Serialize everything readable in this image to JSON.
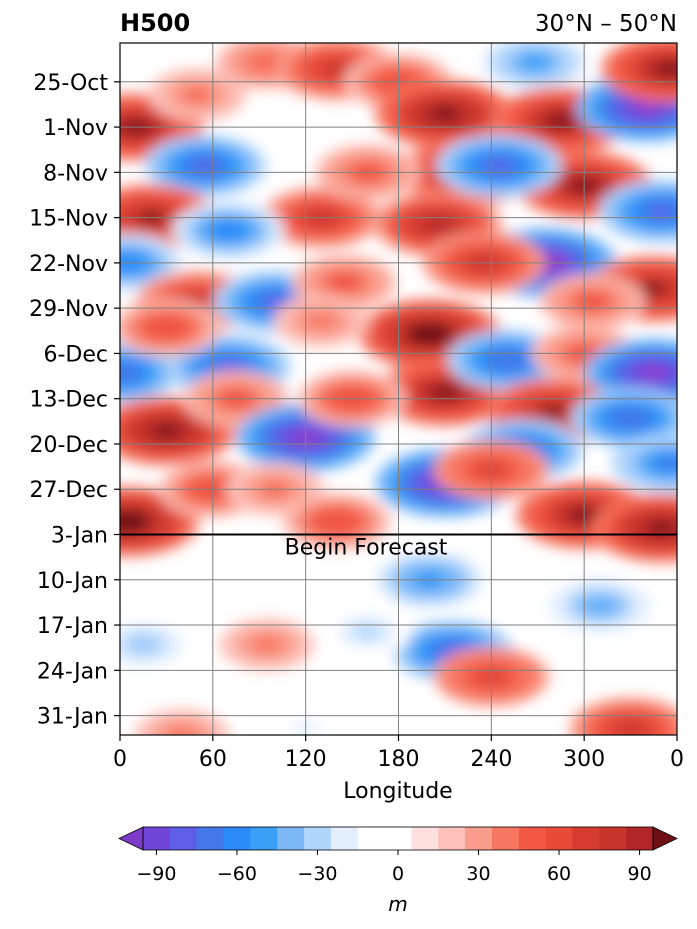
{
  "chart_data": {
    "type": "heatmap",
    "title_left": "H500",
    "title_right": "30°N – 50°N",
    "xlabel": "Longitude",
    "ylabel": "",
    "x_ticks": [
      "0",
      "60",
      "120",
      "180",
      "240",
      "300",
      "0"
    ],
    "x_tick_values": [
      0,
      60,
      120,
      180,
      240,
      300,
      360
    ],
    "xlim": [
      0,
      360
    ],
    "y_ticks": [
      "25-Oct",
      "1-Nov",
      "8-Nov",
      "15-Nov",
      "22-Nov",
      "29-Nov",
      "6-Dec",
      "13-Dec",
      "20-Dec",
      "27-Dec",
      "3-Jan",
      "10-Jan",
      "17-Jan",
      "24-Jan",
      "31-Jan"
    ],
    "y_range": [
      "19-Oct",
      "3-Feb"
    ],
    "y_axis_inverted": true,
    "forecast_start": "3-Jan",
    "annotation": "Begin Forecast",
    "grid": true,
    "colorbar": {
      "label": "m",
      "ticks": [
        "−90",
        "−60",
        "−30",
        "0",
        "30",
        "60",
        "90"
      ],
      "tick_values": [
        -90,
        -60,
        -30,
        0,
        30,
        60,
        90
      ],
      "levels": [
        -105,
        -95,
        -85,
        -75,
        -65,
        -55,
        -45,
        -35,
        -25,
        -15,
        -5,
        5,
        15,
        25,
        35,
        45,
        55,
        65,
        75,
        85,
        95,
        105
      ],
      "extend": "both",
      "colors": [
        "#7e3ac8",
        "#963ccc",
        "#7045d8",
        "#5e5ee8",
        "#4577e8",
        "#2a8af8",
        "#3aa0f7",
        "#7db9f9",
        "#b1d6fb",
        "#e3efff",
        "#ffffff",
        "#ffffff",
        "#ffe0e0",
        "#fdc1b9",
        "#fa9d8c",
        "#f77762",
        "#f25944",
        "#e84b3a",
        "#d63c30",
        "#c7342c",
        "#b2262a",
        "#6e1014"
      ]
    },
    "features": [
      {
        "lon": 10,
        "date": "1-Nov",
        "value": 100
      },
      {
        "lon": 50,
        "date": "27-Oct",
        "value": 45
      },
      {
        "lon": 95,
        "date": "22-Oct",
        "value": 50
      },
      {
        "lon": 140,
        "date": "23-Oct",
        "value": 80
      },
      {
        "lon": 180,
        "date": "25-Oct",
        "value": 60
      },
      {
        "lon": 210,
        "date": "30-Oct",
        "value": 105
      },
      {
        "lon": 225,
        "date": "8-Nov",
        "value": 100
      },
      {
        "lon": 268,
        "date": "22-Oct",
        "value": -55
      },
      {
        "lon": 285,
        "date": "31-Oct",
        "value": 100
      },
      {
        "lon": 300,
        "date": "10-Nov",
        "value": 100
      },
      {
        "lon": 340,
        "date": "29-Oct",
        "value": -105
      },
      {
        "lon": 355,
        "date": "23-Oct",
        "value": 100
      },
      {
        "lon": 55,
        "date": "7-Nov",
        "value": -80
      },
      {
        "lon": 245,
        "date": "7-Nov",
        "value": -85
      },
      {
        "lon": 20,
        "date": "15-Nov",
        "value": 95
      },
      {
        "lon": 130,
        "date": "15-Nov",
        "value": 75
      },
      {
        "lon": 70,
        "date": "17-Nov",
        "value": -65
      },
      {
        "lon": 160,
        "date": "8-Nov",
        "value": 55
      },
      {
        "lon": 205,
        "date": "16-Nov",
        "value": 90
      },
      {
        "lon": 350,
        "date": "14-Nov",
        "value": -85
      },
      {
        "lon": 5,
        "date": "22-Nov",
        "value": -65
      },
      {
        "lon": 275,
        "date": "22-Nov",
        "value": -110
      },
      {
        "lon": 235,
        "date": "22-Nov",
        "value": 80
      },
      {
        "lon": 50,
        "date": "28-Nov",
        "value": 80
      },
      {
        "lon": 100,
        "date": "28-Nov",
        "value": -80
      },
      {
        "lon": 345,
        "date": "26-Nov",
        "value": 95
      },
      {
        "lon": 305,
        "date": "28-Nov",
        "value": 55
      },
      {
        "lon": 145,
        "date": "25-Nov",
        "value": 55
      },
      {
        "lon": 200,
        "date": "3-Dec",
        "value": 110
      },
      {
        "lon": 210,
        "date": "12-Dec",
        "value": 100
      },
      {
        "lon": 250,
        "date": "7-Dec",
        "value": -75
      },
      {
        "lon": 70,
        "date": "8-Dec",
        "value": -85
      },
      {
        "lon": 130,
        "date": "1-Dec",
        "value": 40
      },
      {
        "lon": 0,
        "date": "9-Dec",
        "value": -75
      },
      {
        "lon": 30,
        "date": "2-Dec",
        "value": 60
      },
      {
        "lon": 300,
        "date": "6-Dec",
        "value": 55
      },
      {
        "lon": 345,
        "date": "9-Dec",
        "value": -105
      },
      {
        "lon": 30,
        "date": "18-Dec",
        "value": 105
      },
      {
        "lon": 75,
        "date": "13-Dec",
        "value": 55
      },
      {
        "lon": 120,
        "date": "19-Dec",
        "value": -105
      },
      {
        "lon": 150,
        "date": "13-Dec",
        "value": 60
      },
      {
        "lon": 280,
        "date": "15-Dec",
        "value": 95
      },
      {
        "lon": 260,
        "date": "21-Dec",
        "value": -80
      },
      {
        "lon": 330,
        "date": "16-Dec",
        "value": -75
      },
      {
        "lon": 5,
        "date": "1-Jan",
        "value": 110
      },
      {
        "lon": 60,
        "date": "27-Dec",
        "value": 60
      },
      {
        "lon": 100,
        "date": "27-Dec",
        "value": 45
      },
      {
        "lon": 140,
        "date": "1-Jan",
        "value": 60
      },
      {
        "lon": 210,
        "date": "26-Dec",
        "value": -105
      },
      {
        "lon": 240,
        "date": "24-Dec",
        "value": 70
      },
      {
        "lon": 300,
        "date": "31-Dec",
        "value": 100
      },
      {
        "lon": 350,
        "date": "2-Jan",
        "value": 105
      },
      {
        "lon": 355,
        "date": "23-Dec",
        "value": -70
      },
      {
        "lon": 200,
        "date": "10-Jan",
        "value": -60
      },
      {
        "lon": 215,
        "date": "21-Jan",
        "value": -80
      },
      {
        "lon": 310,
        "date": "14-Jan",
        "value": -50
      },
      {
        "lon": 15,
        "date": "20-Jan",
        "value": -40
      },
      {
        "lon": 95,
        "date": "20-Jan",
        "value": 40
      },
      {
        "lon": 240,
        "date": "25-Jan",
        "value": 70
      },
      {
        "lon": 160,
        "date": "18-Jan",
        "value": -30
      },
      {
        "lon": 330,
        "date": "2-Feb",
        "value": 80
      },
      {
        "lon": 40,
        "date": "3-Feb",
        "value": 40
      },
      {
        "lon": 120,
        "date": "2-Feb",
        "value": -20
      }
    ]
  }
}
